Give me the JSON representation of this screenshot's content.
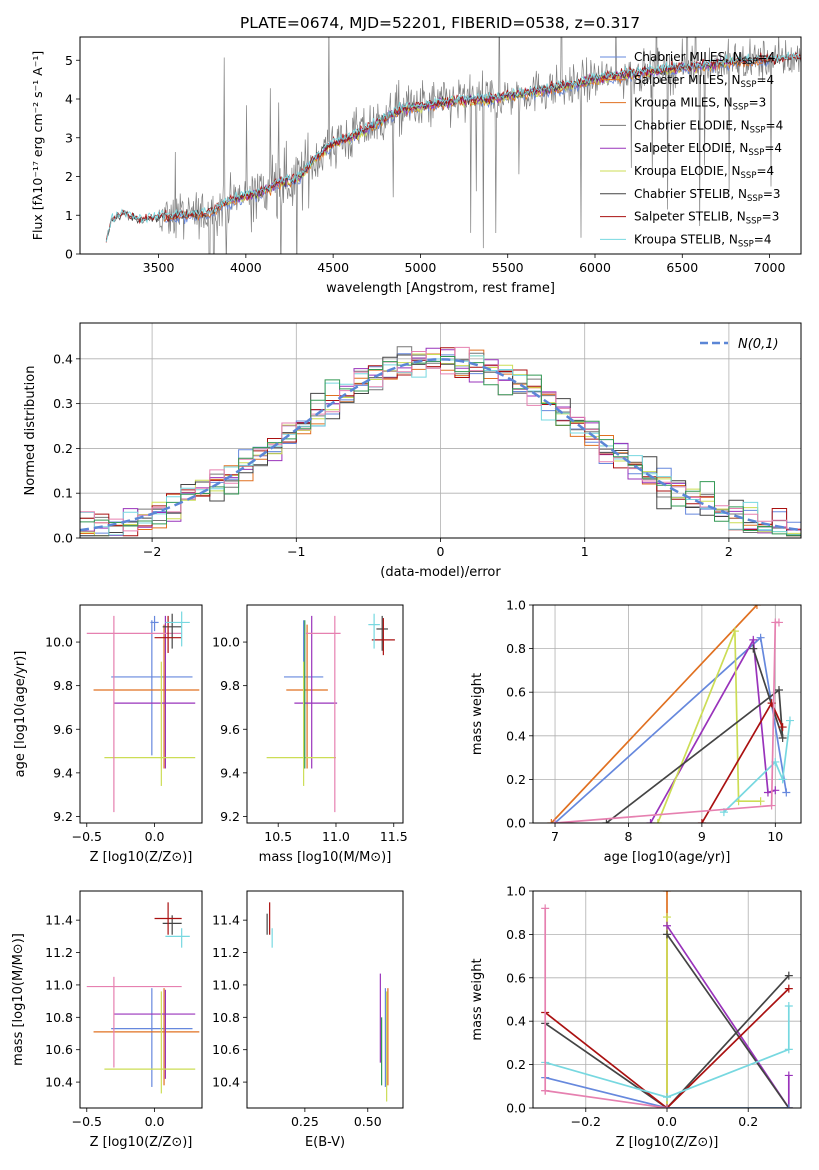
{
  "figure_title": "PLATE=0674, MJD=52201, FIBERID=0538, z=0.317",
  "colors": {
    "Chabrier MILES": "#6688dd",
    "Salpeter MILES": "#e07020",
    "Kroupa MILES": "#e07020",
    "Chabrier ELODIE": "#777777",
    "Salpeter ELODIE": "#9933bb",
    "Kroupa ELODIE": "#ccdd55",
    "Chabrier STELIB": "#444444",
    "Salpeter STELIB": "#aa1111",
    "Kroupa STELIB": "#77d8e0",
    "pink": "#e680b0",
    "green": "#339955",
    "normal_curve": "#5b86d6",
    "grid": "#b0b0b0"
  },
  "chart_data": [
    {
      "id": "spectrum",
      "type": "line",
      "title": "PLATE=0674, MJD=52201, FIBERID=0538, z=0.317",
      "xlabel": "wavelength [Angstrom, rest frame]",
      "ylabel": "Flux [fλ10⁻¹⁷ erg cm⁻² s⁻¹ A⁻¹]",
      "xlim": [
        3050,
        7180
      ],
      "ylim": [
        0,
        5.6
      ],
      "xticks": [
        "3500",
        "4000",
        "4500",
        "5000",
        "5500",
        "6000",
        "6500",
        "7000"
      ],
      "yticks": [
        "0",
        "1",
        "2",
        "3",
        "4",
        "5"
      ],
      "grid": false,
      "legend_position": "right",
      "legend": [
        {
          "label": "Chabrier MILES, N",
          "sub": "SSP",
          "suffix": "=4"
        },
        {
          "label": "Salpeter MILES, N",
          "sub": "SSP",
          "suffix": "=4"
        },
        {
          "label": "Kroupa MILES, N",
          "sub": "SSP",
          "suffix": "=3"
        },
        {
          "label": "Chabrier ELODIE, N",
          "sub": "SSP",
          "suffix": "=4"
        },
        {
          "label": "Salpeter ELODIE, N",
          "sub": "SSP",
          "suffix": "=4"
        },
        {
          "label": "Kroupa ELODIE, N",
          "sub": "SSP",
          "suffix": "=4"
        },
        {
          "label": "Chabrier STELIB, N",
          "sub": "SSP",
          "suffix": "=3"
        },
        {
          "label": "Salpeter STELIB, N",
          "sub": "SSP",
          "suffix": "=3"
        },
        {
          "label": "Kroupa STELIB, N",
          "sub": "SSP",
          "suffix": "=4"
        }
      ],
      "model_anchor_x": [
        3200,
        3230,
        3300,
        3400,
        3500,
        3600,
        3700,
        3800,
        3900,
        4000,
        4100,
        4200,
        4300,
        4400,
        4500,
        4600,
        4700,
        4800,
        4900,
        5000,
        5200,
        5400,
        5600,
        5800,
        6000,
        6200,
        6400,
        6600,
        6800,
        7000,
        7180
      ],
      "model_anchor_y": [
        0.3,
        0.85,
        1.05,
        0.85,
        0.95,
        0.98,
        1.0,
        1.05,
        1.35,
        1.5,
        1.6,
        1.85,
        1.95,
        2.5,
        2.85,
        3.0,
        3.25,
        3.5,
        3.75,
        3.8,
        3.95,
        4.0,
        4.15,
        4.3,
        4.5,
        4.65,
        4.75,
        4.85,
        4.95,
        5.0,
        5.05
      ]
    },
    {
      "id": "residuals",
      "type": "line",
      "xlabel": "(data-model)/error",
      "ylabel": "Normed distribution",
      "xlim": [
        -2.5,
        2.5
      ],
      "ylim": [
        0,
        0.48
      ],
      "xticks": [
        "−2",
        "−1",
        "0",
        "1",
        "2"
      ],
      "yticks": [
        "0.0",
        "0.1",
        "0.2",
        "0.3",
        "0.4"
      ],
      "grid": true,
      "legend_position": "top-right",
      "legend_label": "N(0,1)",
      "bin_width": 0.1
    },
    {
      "id": "age_vs_Z",
      "type": "scatter",
      "xlabel": "Z [log10(Z/Z⊙)]",
      "ylabel": "age  [log10(age/yr)]",
      "xlim": [
        -0.55,
        0.35
      ],
      "ylim": [
        9.17,
        10.17
      ],
      "xticks": [
        "−0.5",
        "0.0"
      ],
      "yticks": [
        "9.2",
        "9.4",
        "9.6",
        "9.8",
        "10.0"
      ],
      "points": [
        {
          "c": "Chabrier MILES",
          "x": -0.02,
          "xerr": [
            0.3,
            0.3
          ],
          "y": 9.84,
          "yerr": [
            0.36,
            0.26
          ]
        },
        {
          "c": "Kroupa MILES",
          "x": 0.07,
          "xerr": [
            0.52,
            0.26
          ],
          "y": 9.78,
          "yerr": [
            0.36,
            0.3
          ]
        },
        {
          "c": "Salpeter ELODIE",
          "x": 0.08,
          "xerr": [
            0.38,
            0.22
          ],
          "y": 9.72,
          "yerr": [
            0.3,
            0.4
          ]
        },
        {
          "c": "Kroupa ELODIE",
          "x": 0.05,
          "xerr": [
            0.42,
            0.25
          ],
          "y": 9.47,
          "yerr": [
            0.13,
            0.44
          ]
        },
        {
          "c": "pink",
          "x": -0.3,
          "xerr": [
            0.2,
            0.5
          ],
          "y": 10.04,
          "yerr": [
            0.82,
            0.08
          ]
        },
        {
          "c": "Chabrier STELIB",
          "x": 0.13,
          "xerr": [
            0.07,
            0.07
          ],
          "y": 10.07,
          "yerr": [
            0.1,
            0.06
          ]
        },
        {
          "c": "Salpeter STELIB",
          "x": 0.1,
          "xerr": [
            0.1,
            0.1
          ],
          "y": 10.02,
          "yerr": [
            0.07,
            0.1
          ]
        },
        {
          "c": "Kroupa STELIB",
          "x": 0.2,
          "xerr": [
            0.12,
            0.06
          ],
          "y": 10.09,
          "yerr": [
            0.11,
            0.05
          ]
        },
        {
          "c": "Chabrier MILES",
          "x": 0.0,
          "xerr": [
            0.03,
            0.03
          ],
          "y": 10.09,
          "yerr": [
            0.04,
            0.03
          ]
        }
      ]
    },
    {
      "id": "age_vs_mass",
      "type": "scatter",
      "xlabel": "mass [log10(M/M⊙)]",
      "xlim": [
        10.23,
        11.58
      ],
      "ylim": [
        9.17,
        10.17
      ],
      "xticks": [
        "10.5",
        "11.0",
        "11.5"
      ],
      "yticks": [
        "9.2",
        "9.4",
        "9.6",
        "9.8",
        "10.0"
      ],
      "points": [
        {
          "c": "Chabrier MILES",
          "x": 10.72,
          "xerr": [
            0.17,
            0.17
          ],
          "y": 9.84,
          "yerr": [
            0.36,
            0.26
          ]
        },
        {
          "c": "Kroupa MILES",
          "x": 10.75,
          "xerr": [
            0.18,
            0.18
          ],
          "y": 9.78,
          "yerr": [
            0.36,
            0.3
          ]
        },
        {
          "c": "Salpeter ELODIE",
          "x": 10.79,
          "xerr": [
            0.15,
            0.22
          ],
          "y": 9.72,
          "yerr": [
            0.3,
            0.4
          ]
        },
        {
          "c": "Kroupa ELODIE",
          "x": 10.72,
          "xerr": [
            0.32,
            0.28
          ],
          "y": 9.47,
          "yerr": [
            0.13,
            0.44
          ]
        },
        {
          "c": "pink",
          "x": 10.99,
          "xerr": [
            0.25,
            0.05
          ],
          "y": 10.04,
          "yerr": [
            0.82,
            0.08
          ]
        },
        {
          "c": "Chabrier STELIB",
          "x": 11.4,
          "xerr": [
            0.05,
            0.05
          ],
          "y": 10.06,
          "yerr": [
            0.1,
            0.06
          ]
        },
        {
          "c": "Salpeter STELIB",
          "x": 11.41,
          "xerr": [
            0.1,
            0.1
          ],
          "y": 10.01,
          "yerr": [
            0.07,
            0.1
          ]
        },
        {
          "c": "Kroupa STELIB",
          "x": 11.33,
          "xerr": [
            0.05,
            0.05
          ],
          "y": 10.08,
          "yerr": [
            0.11,
            0.05
          ]
        },
        {
          "c": "green",
          "x": 10.73,
          "xerr": [
            0.0,
            0.0
          ],
          "y": 9.72,
          "yerr": [
            0.3,
            0.38
          ]
        }
      ]
    },
    {
      "id": "massweight_vs_age",
      "type": "line",
      "xlabel": "age  [log10(age/yr)]",
      "ylabel": "mass weight",
      "xlim": [
        6.7,
        10.35
      ],
      "ylim": [
        0,
        1.0
      ],
      "xticks": [
        "7",
        "8",
        "9",
        "10"
      ],
      "yticks": [
        "0.0",
        "0.2",
        "0.4",
        "0.6",
        "0.8",
        "1.0"
      ],
      "grid": true,
      "series": [
        {
          "c": "Kroupa MILES",
          "x": [
            6.95,
            9.75
          ],
          "y": [
            0.0,
            1.0
          ]
        },
        {
          "c": "Chabrier MILES",
          "x": [
            7.0,
            9.8,
            10.15
          ],
          "y": [
            0.0,
            0.85,
            0.14
          ]
        },
        {
          "c": "Salpeter ELODIE",
          "x": [
            8.3,
            9.7,
            9.9,
            10.0
          ],
          "y": [
            0.0,
            0.84,
            0.14,
            0.15
          ]
        },
        {
          "c": "Kroupa ELODIE",
          "x": [
            8.4,
            9.45,
            9.5,
            9.8
          ],
          "y": [
            0.0,
            0.88,
            0.1,
            0.1
          ]
        },
        {
          "c": "Chabrier STELIB",
          "x": [
            7.7,
            10.05,
            10.1,
            9.7
          ],
          "y": [
            0.0,
            0.61,
            0.39,
            0.8
          ]
        },
        {
          "c": "Salpeter STELIB",
          "x": [
            9.0,
            9.95,
            10.1
          ],
          "y": [
            0.0,
            0.55,
            0.44
          ]
        },
        {
          "c": "Kroupa STELIB",
          "x": [
            9.3,
            10.0,
            10.1,
            10.2
          ],
          "y": [
            0.05,
            0.28,
            0.2,
            0.47
          ]
        },
        {
          "c": "pink",
          "x": [
            7.0,
            9.95,
            10.0,
            10.05
          ],
          "y": [
            0.0,
            0.08,
            0.92,
            0.92
          ]
        }
      ]
    },
    {
      "id": "mass_vs_Z",
      "type": "scatter",
      "xlabel": "Z [log10(Z/Z⊙)]",
      "ylabel": "mass [log10(M/M⊙)]",
      "xlim": [
        -0.55,
        0.35
      ],
      "ylim": [
        10.24,
        11.58
      ],
      "xticks": [
        "−0.5",
        "0.0"
      ],
      "yticks": [
        "10.4",
        "10.6",
        "10.8",
        "11.0",
        "11.2",
        "11.4"
      ],
      "points": [
        {
          "c": "Chabrier MILES",
          "x": -0.02,
          "xerr": [
            0.3,
            0.3
          ],
          "y": 10.73,
          "yerr": [
            0.36,
            0.25
          ]
        },
        {
          "c": "Kroupa MILES",
          "x": 0.07,
          "xerr": [
            0.52,
            0.26
          ],
          "y": 10.71,
          "yerr": [
            0.33,
            0.27
          ]
        },
        {
          "c": "Salpeter ELODIE",
          "x": 0.08,
          "xerr": [
            0.38,
            0.22
          ],
          "y": 10.82,
          "yerr": [
            0.4,
            0.15
          ]
        },
        {
          "c": "Kroupa ELODIE",
          "x": 0.05,
          "xerr": [
            0.42,
            0.25
          ],
          "y": 10.48,
          "yerr": [
            0.15,
            0.48
          ]
        },
        {
          "c": "pink",
          "x": -0.3,
          "xerr": [
            0.2,
            0.5
          ],
          "y": 10.99,
          "yerr": [
            0.5,
            0.06
          ]
        },
        {
          "c": "Chabrier STELIB",
          "x": 0.13,
          "xerr": [
            0.07,
            0.07
          ],
          "y": 11.38,
          "yerr": [
            0.07,
            0.05
          ]
        },
        {
          "c": "Salpeter STELIB",
          "x": 0.1,
          "xerr": [
            0.1,
            0.1
          ],
          "y": 11.41,
          "yerr": [
            0.1,
            0.1
          ]
        },
        {
          "c": "Kroupa STELIB",
          "x": 0.2,
          "xerr": [
            0.12,
            0.06
          ],
          "y": 11.3,
          "yerr": [
            0.07,
            0.05
          ]
        }
      ]
    },
    {
      "id": "mass_vs_EBV",
      "type": "scatter",
      "xlabel": "E(B-V)",
      "xlim": [
        0.02,
        0.64
      ],
      "ylim": [
        10.24,
        11.58
      ],
      "xticks": [
        "0.25",
        "0.50"
      ],
      "yticks": [
        "10.4",
        "10.6",
        "10.8",
        "11.0",
        "11.2",
        "11.4"
      ],
      "points": [
        {
          "c": "Chabrier STELIB",
          "x": 0.1,
          "y": 11.38,
          "yerr": [
            0.07,
            0.06
          ]
        },
        {
          "c": "Salpeter STELIB",
          "x": 0.11,
          "y": 11.41,
          "yerr": [
            0.1,
            0.1
          ]
        },
        {
          "c": "Kroupa STELIB",
          "x": 0.12,
          "y": 11.3,
          "yerr": [
            0.07,
            0.05
          ]
        },
        {
          "c": "Salpeter ELODIE",
          "x": 0.55,
          "y": 10.82,
          "yerr": [
            0.3,
            0.25
          ]
        },
        {
          "c": "green",
          "x": 0.555,
          "y": 10.6,
          "yerr": [
            0.22,
            0.2
          ]
        },
        {
          "c": "Chabrier MILES",
          "x": 0.57,
          "y": 10.73,
          "yerr": [
            0.36,
            0.25
          ]
        },
        {
          "c": "Kroupa ELODIE",
          "x": 0.575,
          "y": 10.48,
          "yerr": [
            0.2,
            0.48
          ]
        },
        {
          "c": "Kroupa MILES",
          "x": 0.58,
          "y": 10.71,
          "yerr": [
            0.33,
            0.27
          ]
        }
      ]
    },
    {
      "id": "massweight_vs_Z",
      "type": "line",
      "xlabel": "Z [log10(Z/Z⊙)]",
      "ylabel": "mass weight",
      "xlim": [
        -0.33,
        0.33
      ],
      "ylim": [
        0,
        1.0
      ],
      "xticks": [
        "−0.2",
        "0.0",
        "0.2"
      ],
      "yticks": [
        "0.0",
        "0.2",
        "0.4",
        "0.6",
        "0.8",
        "1.0"
      ],
      "grid": true,
      "series": [
        {
          "c": "Kroupa MILES",
          "x": [
            0.0,
            0.0
          ],
          "y": [
            0.0,
            1.0
          ]
        },
        {
          "c": "Kroupa ELODIE",
          "x": [
            0.0,
            0.0,
            0.3
          ],
          "y": [
            0.88,
            0.0,
            0.0
          ]
        },
        {
          "c": "Salpeter ELODIE",
          "x": [
            0.0,
            0.3,
            0.3
          ],
          "y": [
            0.84,
            0.0,
            0.15
          ]
        },
        {
          "c": "Chabrier STELIB",
          "x": [
            -0.3,
            0.0,
            0.3
          ],
          "y": [
            0.39,
            0.0,
            0.61
          ]
        },
        {
          "c": "Chabrier STELIB",
          "x": [
            0.0,
            0.3
          ],
          "y": [
            0.8,
            0.0
          ]
        },
        {
          "c": "Salpeter STELIB",
          "x": [
            -0.3,
            0.0,
            0.3
          ],
          "y": [
            0.44,
            0.0,
            0.55
          ]
        },
        {
          "c": "Kroupa STELIB",
          "x": [
            -0.3,
            0.0,
            0.3,
            0.3
          ],
          "y": [
            0.21,
            0.05,
            0.27,
            0.47
          ]
        },
        {
          "c": "Chabrier MILES",
          "x": [
            -0.3,
            0.0,
            0.3
          ],
          "y": [
            0.14,
            0.0,
            0.0
          ]
        },
        {
          "c": "pink",
          "x": [
            -0.3,
            0.0,
            -0.3,
            -0.3
          ],
          "y": [
            0.08,
            0.0,
            0.08,
            0.92
          ]
        }
      ]
    }
  ]
}
